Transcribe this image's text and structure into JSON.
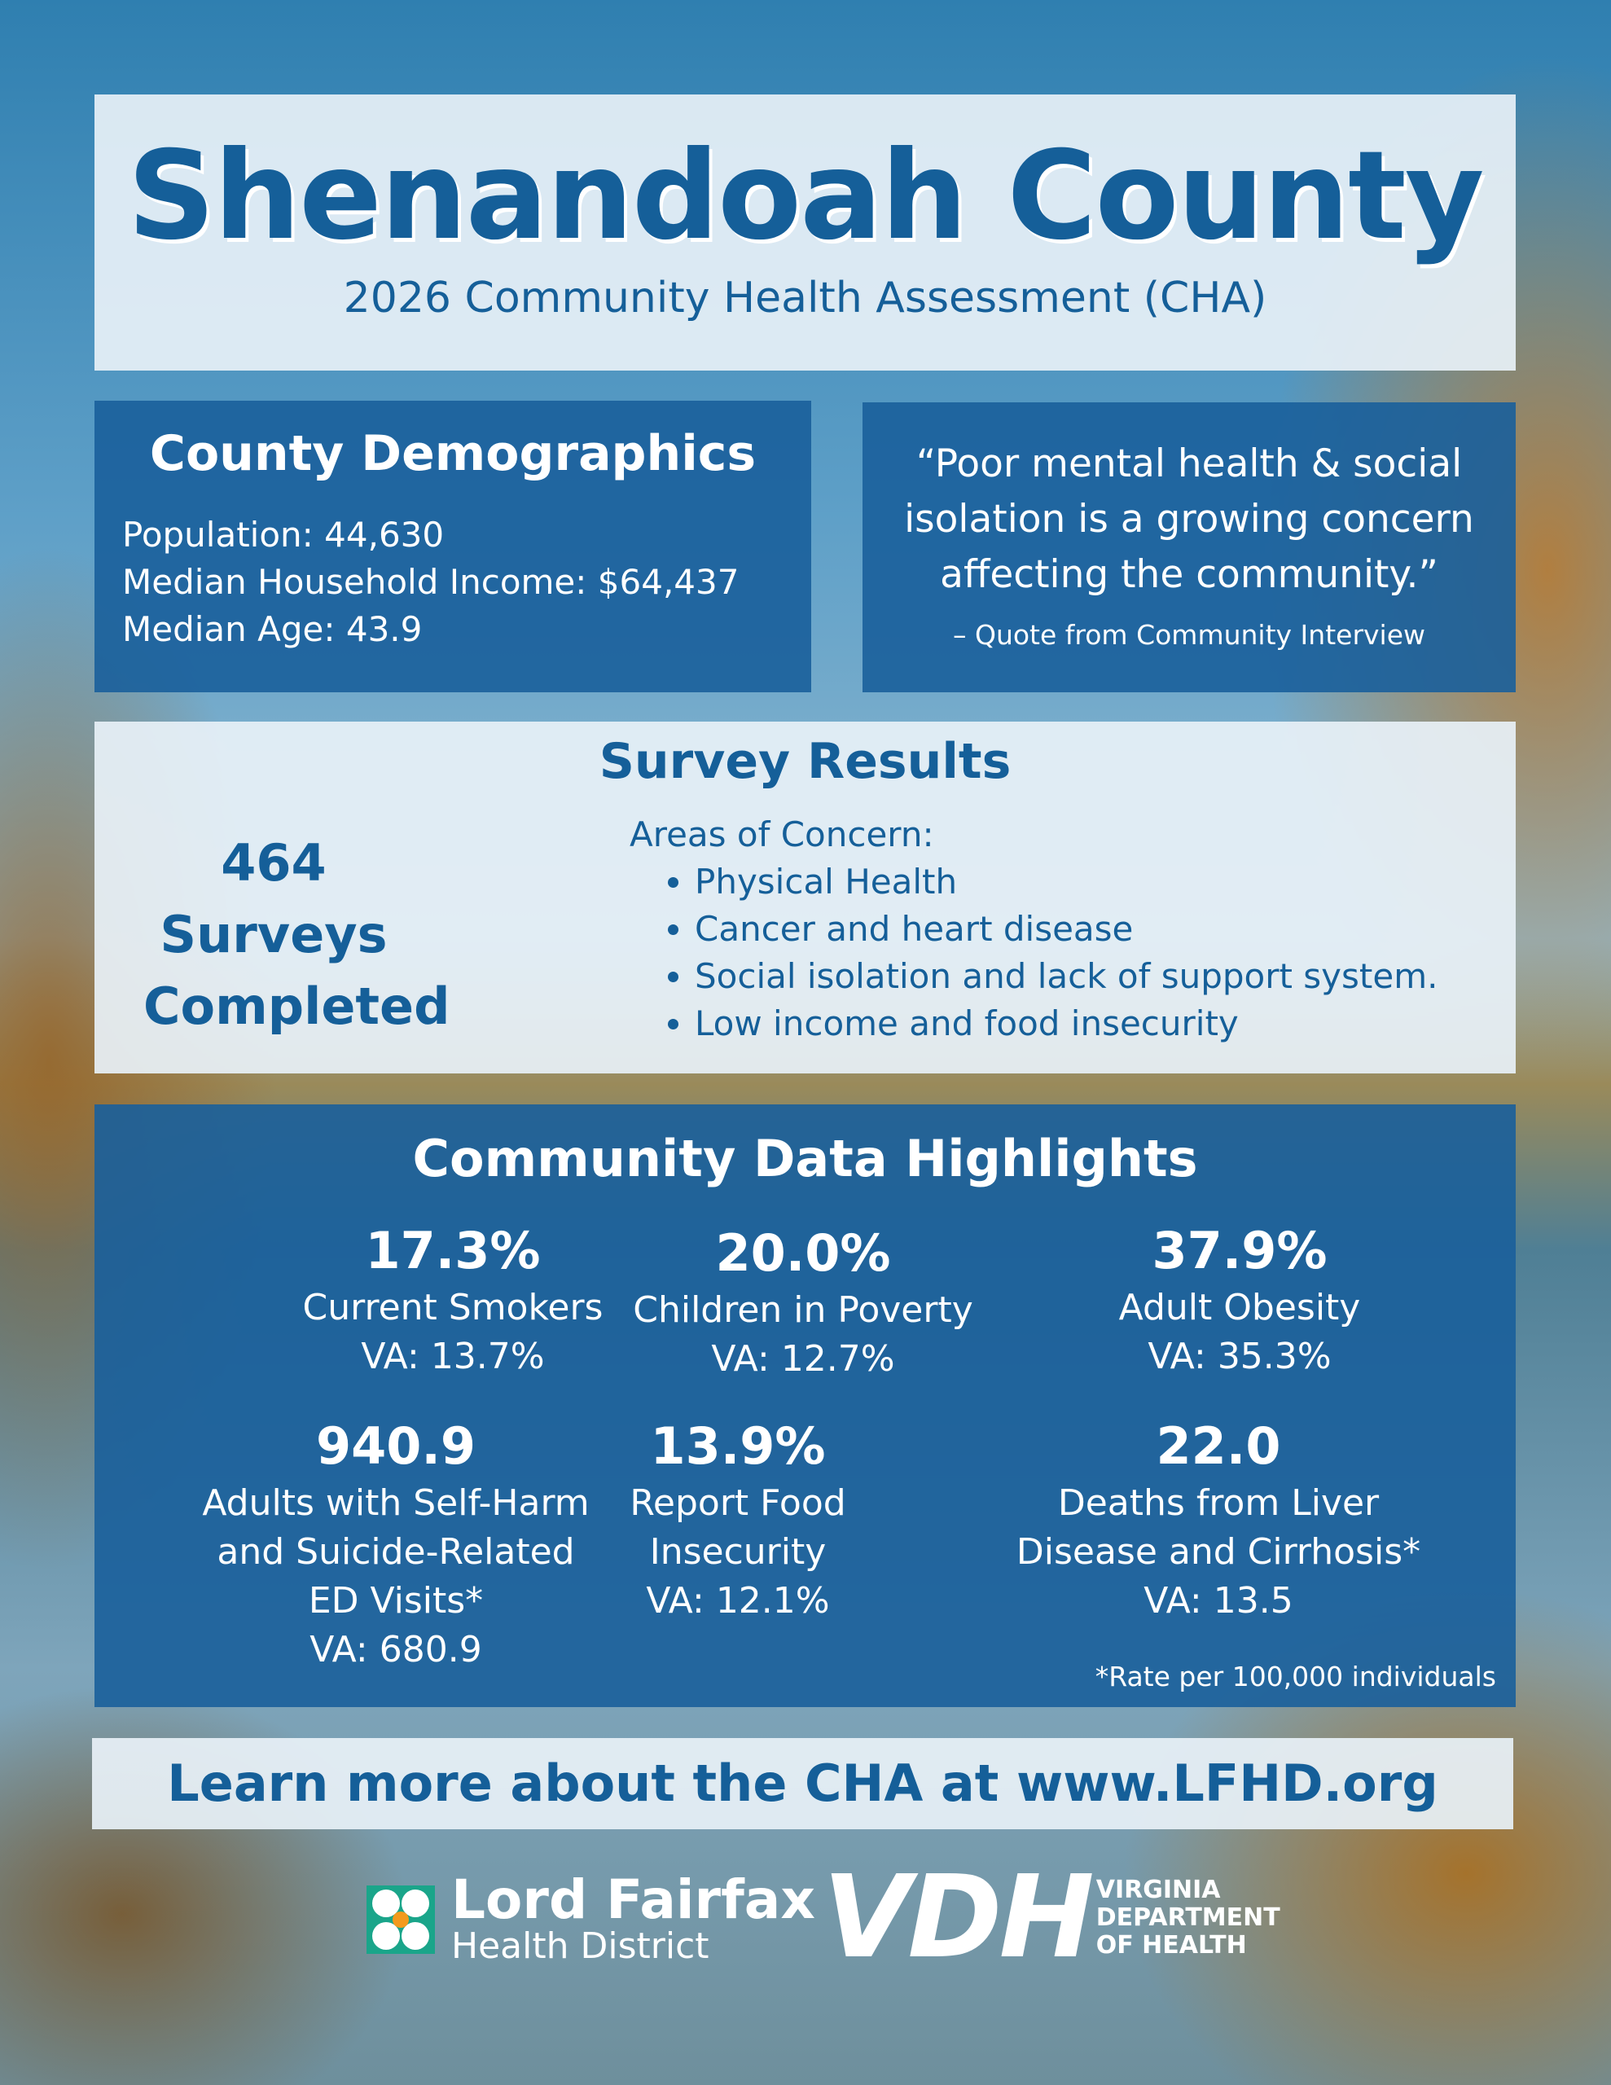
{
  "header": {
    "title": "Shenandoah County",
    "subtitle": "2026 Community Health Assessment (CHA)"
  },
  "demographics": {
    "heading": "County Demographics",
    "population": "Population: 44,630",
    "income": "Median Household Income: $64,437",
    "age": "Median Age: 43.9"
  },
  "quote": {
    "text": "“Poor mental health & social isolation is a growing concern affecting the community.”",
    "attribution": "– Quote from Community Interview"
  },
  "survey": {
    "heading": "Survey Results",
    "count_line1": "464 Surveys",
    "count_line2": "Completed",
    "areas_label": "Areas of Concern:",
    "areas": [
      "Physical Health",
      "Cancer and heart disease",
      "Social isolation and lack of support system.",
      "Low income and food insecurity"
    ]
  },
  "highlights": {
    "heading": "Community Data Highlights",
    "stats": [
      {
        "value": "17.3%",
        "label": "Current Smokers",
        "va": "VA: 13.7%"
      },
      {
        "value": "20.0%",
        "label": "Children in Poverty",
        "va": "VA: 12.7%"
      },
      {
        "value": "37.9%",
        "label": "Adult Obesity",
        "va": "VA: 35.3%"
      },
      {
        "value": "940.9",
        "label": "Adults with Self-Harm and Suicide-Related ED Visits*",
        "va": "VA: 680.9"
      },
      {
        "value": "13.9%",
        "label": "Report Food Insecurity",
        "va": "VA: 12.1%"
      },
      {
        "value": "22.0",
        "label": "Deaths from Liver Disease and Cirrhosis*",
        "va": "VA: 13.5"
      }
    ],
    "note": "*Rate per 100,000 individuals"
  },
  "footer": {
    "learn_more": "Learn more about the CHA at www.LFHD.org",
    "lfhd_logo": {
      "line1": "Lord Fairfax",
      "line2": "Health District"
    },
    "vdh_logo": {
      "mark": "VDH",
      "line1": "VIRGINIA",
      "line2": "DEPARTMENT",
      "line3": "OF HEALTH"
    }
  },
  "colors": {
    "brand_blue": "#155f99",
    "panel_dark": "#195f9b",
    "panel_light": "#e8f1f7"
  }
}
